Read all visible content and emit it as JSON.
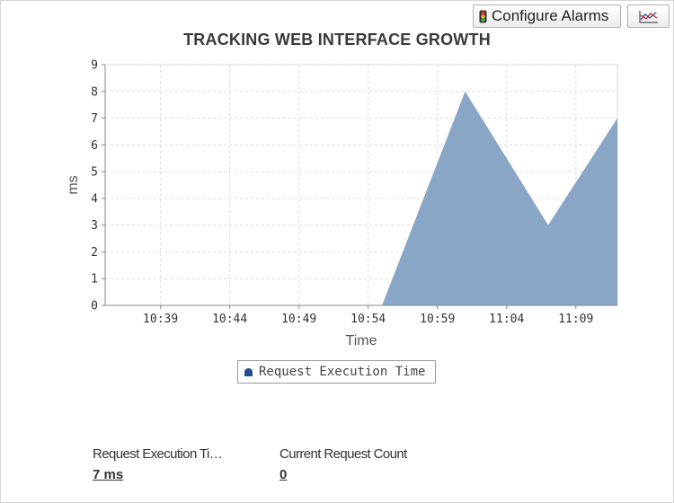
{
  "toolbar": {
    "configure_alarms_label": "Configure Alarms",
    "traffic_light_icon": "traffic-light-icon",
    "chart_type_icon": "line-chart-icon"
  },
  "chart_data": {
    "type": "area",
    "title": "TRACKING WEB INTERFACE GROWTH",
    "xlabel": "Time",
    "ylabel": "ms",
    "x_tick_labels": [
      "10:39",
      "10:44",
      "10:49",
      "10:54",
      "10:59",
      "11:04",
      "11:09"
    ],
    "y_tick_labels": [
      "0",
      "1",
      "2",
      "3",
      "4",
      "5",
      "6",
      "7",
      "8",
      "9"
    ],
    "ylim": [
      0,
      9
    ],
    "xlim": [
      "10:35",
      "11:12"
    ],
    "grid": true,
    "legend_position": "bottom-center",
    "series": [
      {
        "name": "Request Execution Time",
        "color": "#7f9ec1",
        "points": [
          {
            "x": "10:55",
            "y": 0
          },
          {
            "x": "11:01",
            "y": 8
          },
          {
            "x": "11:07",
            "y": 3
          },
          {
            "x": "11:12",
            "y": 7
          }
        ]
      }
    ]
  },
  "legend": {
    "label": "Request Execution Time",
    "marker_color": "#1f4e8c"
  },
  "metrics": [
    {
      "label": "Request Execution Ti…",
      "value": "7 ms"
    },
    {
      "label": "Current Request Count",
      "value": "0"
    }
  ]
}
